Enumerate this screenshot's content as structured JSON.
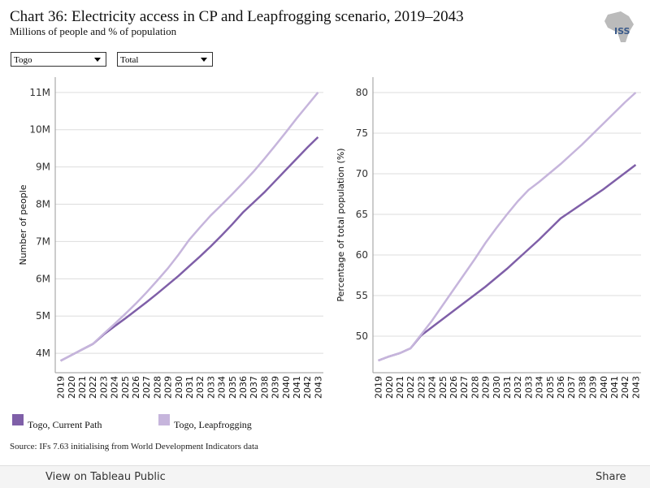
{
  "header": {
    "title": "Chart 36: Electricity access in CP and Leapfrogging scenario, 2019–2043",
    "subtitle": "Millions of people and % of population",
    "logo": "ISS"
  },
  "filters": [
    "Togo",
    "Total"
  ],
  "chart_data": [
    {
      "type": "line",
      "y_label": "Number of people",
      "categories": [
        "2019",
        "2020",
        "2021",
        "2022",
        "2023",
        "2024",
        "2025",
        "2026",
        "2027",
        "2028",
        "2029",
        "2030",
        "2031",
        "2032",
        "2033",
        "2034",
        "2035",
        "2036",
        "2037",
        "2038",
        "2039",
        "2040",
        "2041",
        "2042",
        "2043"
      ],
      "series": [
        {
          "name": "Togo, Current Path",
          "color": "#7f5fa8",
          "values": [
            3800000,
            3950000,
            4100000,
            4250000,
            4500000,
            4720000,
            4930000,
            5150000,
            5370000,
            5600000,
            5840000,
            6080000,
            6340000,
            6600000,
            6870000,
            7160000,
            7460000,
            7780000,
            8050000,
            8320000,
            8620000,
            8920000,
            9220000,
            9520000,
            9800000
          ]
        },
        {
          "name": "Togo, Leapfrogging",
          "color": "#c6b5dc",
          "values": [
            3800000,
            3950000,
            4100000,
            4250000,
            4520000,
            4780000,
            5050000,
            5330000,
            5630000,
            5950000,
            6280000,
            6650000,
            7050000,
            7380000,
            7700000,
            7980000,
            8270000,
            8570000,
            8880000,
            9220000,
            9570000,
            9930000,
            10300000,
            10650000,
            11000000
          ]
        }
      ],
      "ylim": [
        3480000,
        11410000
      ],
      "yticks": [
        {
          "value": 4000000,
          "label": "4M"
        },
        {
          "value": 5000000,
          "label": "5M"
        },
        {
          "value": 6000000,
          "label": "6M"
        },
        {
          "value": 7000000,
          "label": "7M"
        },
        {
          "value": 8000000,
          "label": "8M"
        },
        {
          "value": 9000000,
          "label": "9M"
        },
        {
          "value": 10000000,
          "label": "10M"
        },
        {
          "value": 11000000,
          "label": "11M"
        }
      ],
      "grid": true
    },
    {
      "type": "line",
      "y_label": "Percentage of total population (%)",
      "categories": [
        "2019",
        "2020",
        "2021",
        "2022",
        "2023",
        "2024",
        "2025",
        "2026",
        "2027",
        "2028",
        "2029",
        "2030",
        "2031",
        "2032",
        "2033",
        "2034",
        "2035",
        "2036",
        "2037",
        "2038",
        "2039",
        "2040",
        "2041",
        "2042",
        "2043"
      ],
      "series": [
        {
          "name": "Togo, Current Path",
          "color": "#7f5fa8",
          "values": [
            47,
            47.5,
            47.9,
            48.5,
            50.1,
            51.1,
            52.1,
            53.1,
            54.1,
            55.1,
            56.1,
            57.2,
            58.3,
            59.5,
            60.7,
            61.9,
            63.2,
            64.5,
            65.4,
            66.3,
            67.2,
            68.1,
            69.1,
            70.1,
            71.1
          ]
        },
        {
          "name": "Togo, Leapfrogging",
          "color": "#c6b5dc",
          "values": [
            47,
            47.5,
            47.9,
            48.5,
            50.2,
            51.9,
            53.8,
            55.7,
            57.6,
            59.5,
            61.5,
            63.3,
            65,
            66.6,
            68,
            69,
            70.1,
            71.2,
            72.4,
            73.6,
            74.9,
            76.2,
            77.5,
            78.8,
            80
          ]
        }
      ],
      "ylim": [
        45.5,
        81.9
      ],
      "yticks": [
        50,
        55,
        60,
        65,
        70,
        75,
        80
      ],
      "grid": true
    }
  ],
  "source": "Source: IFs 7.63 initialising from World Development Indicators data",
  "toolbar": {
    "view": "View on Tableau Public",
    "share": "Share"
  }
}
